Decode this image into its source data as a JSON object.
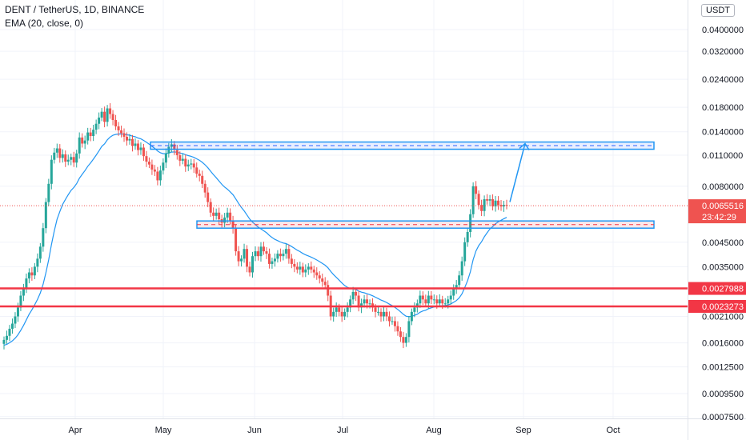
{
  "legend": {
    "title": "DENT / TetherUS, 1D, BINANCE",
    "indicator": "EMA (20, close, 0)"
  },
  "currency_badge": "USDT",
  "chart_data": {
    "type": "candlestick",
    "symbol": "DENT / TetherUS",
    "interval": "1D",
    "exchange": "BINANCE",
    "scale": "log",
    "y_ticks": [
      "0.0400000",
      "0.0320000",
      "0.0240000",
      "0.0180000",
      "0.0140000",
      "0.0110000",
      "0.0080000",
      "0.0065516",
      "0.0045000",
      "0.0035000",
      "0.0027988",
      "0.0023273",
      "0.0021000",
      "0.0016000",
      "0.0012500",
      "0.0009500",
      "0.0007500"
    ],
    "y_tick_values": [
      0.04,
      0.032,
      0.024,
      0.018,
      0.014,
      0.011,
      0.008,
      0.0045,
      0.0035,
      0.0021,
      0.0016,
      0.00125,
      0.00095,
      0.00075
    ],
    "x_ticks": [
      "Apr",
      "May",
      "Jun",
      "Jul",
      "Aug",
      "Sep",
      "Oct"
    ],
    "current_price": "0.0065516",
    "countdown": "23:42:29",
    "horizontal_levels": [
      {
        "label": "0.0027988",
        "value": 0.0027988,
        "color": "#f23645"
      },
      {
        "label": "0.0023273",
        "value": 0.0023273,
        "color": "#f23645"
      }
    ],
    "zones": [
      {
        "name": "resistance-zone",
        "low": 0.0117,
        "high": 0.0126,
        "color": "#2962ff"
      },
      {
        "name": "support-zone",
        "low": 0.0052,
        "high": 0.0056,
        "color": "#f23645"
      }
    ],
    "projection_target": 0.0124,
    "closes": [
      0.00165,
      0.00172,
      0.00185,
      0.00195,
      0.0021,
      0.0023,
      0.0026,
      0.0028,
      0.0031,
      0.0033,
      0.0032,
      0.0035,
      0.0038,
      0.0043,
      0.0052,
      0.0068,
      0.0082,
      0.0105,
      0.0113,
      0.0118,
      0.0107,
      0.0111,
      0.0103,
      0.0105,
      0.0108,
      0.0102,
      0.0112,
      0.0132,
      0.0124,
      0.0128,
      0.0139,
      0.0134,
      0.0143,
      0.0152,
      0.0162,
      0.0172,
      0.0155,
      0.0178,
      0.0168,
      0.0158,
      0.0148,
      0.0142,
      0.0138,
      0.0133,
      0.0128,
      0.013,
      0.0121,
      0.0124,
      0.0116,
      0.0119,
      0.0109,
      0.0103,
      0.01,
      0.0095,
      0.0093,
      0.0085,
      0.0094,
      0.0102,
      0.0112,
      0.012,
      0.0123,
      0.0116,
      0.011,
      0.0104,
      0.0106,
      0.0098,
      0.01,
      0.0101,
      0.0097,
      0.0091,
      0.0089,
      0.0082,
      0.0075,
      0.0068,
      0.0061,
      0.0059,
      0.0061,
      0.0057,
      0.0055,
      0.0058,
      0.0061,
      0.0056,
      0.0052,
      0.0041,
      0.0037,
      0.0038,
      0.0042,
      0.0035,
      0.0033,
      0.0039,
      0.0041,
      0.0039,
      0.0043,
      0.0041,
      0.004,
      0.0036,
      0.0037,
      0.0038,
      0.004,
      0.0039,
      0.004,
      0.0042,
      0.0038,
      0.0036,
      0.0035,
      0.0034,
      0.0035,
      0.0033,
      0.0034,
      0.0035,
      0.0034,
      0.0033,
      0.0032,
      0.0031,
      0.003,
      0.0029,
      0.0026,
      0.0021,
      0.0022,
      0.0023,
      0.0022,
      0.0021,
      0.0022,
      0.0023,
      0.0025,
      0.0027,
      0.0026,
      0.0023,
      0.0024,
      0.0025,
      0.0024,
      0.0024,
      0.0023,
      0.0022,
      0.0022,
      0.0021,
      0.0022,
      0.0021,
      0.002,
      0.002,
      0.0019,
      0.0018,
      0.0017,
      0.0016,
      0.0017,
      0.002,
      0.0022,
      0.0023,
      0.0024,
      0.0026,
      0.0025,
      0.0024,
      0.0026,
      0.0025,
      0.0025,
      0.0024,
      0.0025,
      0.0024,
      0.0024,
      0.0025,
      0.0026,
      0.0028,
      0.0029,
      0.0032,
      0.0037,
      0.0045,
      0.005,
      0.006,
      0.008,
      0.0074,
      0.0066,
      0.0062,
      0.007,
      0.0069,
      0.007,
      0.0065,
      0.0069,
      0.0066,
      0.0065,
      0.0066,
      0.00655
    ]
  }
}
